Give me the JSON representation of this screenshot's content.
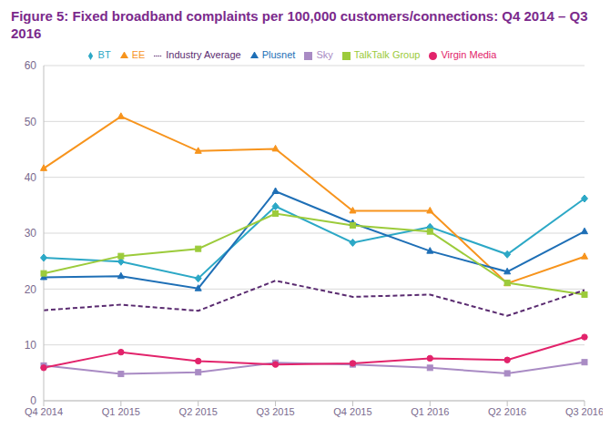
{
  "chart_data": {
    "type": "line",
    "title": "Figure 5: Fixed broadband complaints per 100,000 customers/connections: Q4 2014 – Q3 2016",
    "categories": [
      "Q4 2014",
      "Q1 2015",
      "Q2 2015",
      "Q3 2015",
      "Q4 2015",
      "Q1 2016",
      "Q2 2016",
      "Q3 2016"
    ],
    "series": [
      {
        "name": "BT",
        "color": "#2CA8C6",
        "marker": "diamond",
        "line_style": "solid",
        "values": [
          25.6,
          24.9,
          21.9,
          34.8,
          28.3,
          31.1,
          26.2,
          36.2
        ]
      },
      {
        "name": "Sky",
        "color": "#A98BC4",
        "marker": "square",
        "line_style": "solid",
        "values": [
          6.3,
          4.8,
          5.1,
          6.8,
          6.5,
          5.9,
          4.9,
          6.9
        ]
      },
      {
        "name": "EE",
        "color": "#F7941D",
        "marker": "triangle",
        "line_style": "solid",
        "values": [
          41.6,
          50.9,
          44.7,
          45.1,
          34.0,
          34.0,
          21.0,
          25.8
        ]
      },
      {
        "name": "Plusnet",
        "color": "#1E6FB6",
        "marker": "triangle",
        "line_style": "solid",
        "values": [
          22.1,
          22.3,
          20.1,
          37.5,
          31.8,
          26.8,
          23.1,
          30.3
        ]
      },
      {
        "name": "TalkTalk Group",
        "color": "#9CCB3B",
        "marker": "square",
        "line_style": "solid",
        "values": [
          22.8,
          25.9,
          27.2,
          33.5,
          31.4,
          30.3,
          21.1,
          19.0
        ]
      },
      {
        "name": "Virgin Media",
        "color": "#E2236B",
        "marker": "circle",
        "line_style": "solid",
        "values": [
          5.9,
          8.7,
          7.1,
          6.5,
          6.7,
          7.6,
          7.3,
          11.4
        ]
      },
      {
        "name": "Industry Average",
        "color": "#5A2B70",
        "marker": "none",
        "line_style": "dashed",
        "values": [
          16.2,
          17.2,
          16.1,
          21.5,
          18.6,
          19.0,
          15.2,
          19.8
        ]
      }
    ],
    "ylim": [
      0,
      60
    ],
    "yticks": [
      0,
      10,
      20,
      30,
      40,
      50,
      60
    ],
    "grid": true,
    "legend": "top"
  }
}
